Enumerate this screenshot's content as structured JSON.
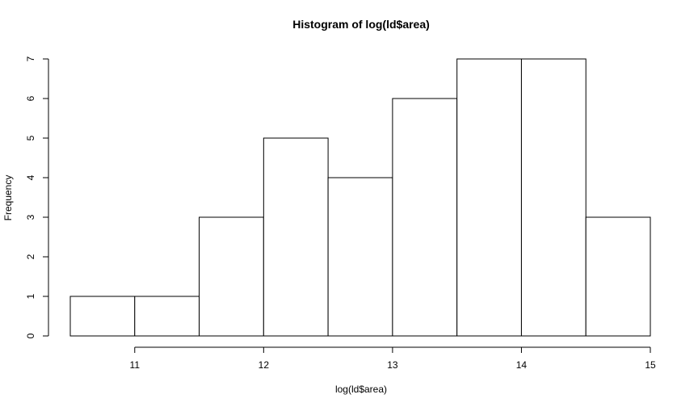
{
  "chart_data": {
    "type": "bar",
    "title": "Histogram of log(ld$area)",
    "xlabel": "log(ld$area)",
    "ylabel": "Frequency",
    "bins": [
      {
        "from": 10.5,
        "to": 11.0,
        "count": 1
      },
      {
        "from": 11.0,
        "to": 11.5,
        "count": 1
      },
      {
        "from": 11.5,
        "to": 12.0,
        "count": 3
      },
      {
        "from": 12.0,
        "to": 12.5,
        "count": 5
      },
      {
        "from": 12.5,
        "to": 13.0,
        "count": 4
      },
      {
        "from": 13.0,
        "to": 13.5,
        "count": 6
      },
      {
        "from": 13.5,
        "to": 14.0,
        "count": 7
      },
      {
        "from": 14.0,
        "to": 14.5,
        "count": 7
      },
      {
        "from": 14.5,
        "to": 15.0,
        "count": 3
      }
    ],
    "x_ticks": [
      11,
      12,
      13,
      14,
      15
    ],
    "y_ticks": [
      0,
      1,
      2,
      3,
      4,
      5,
      6,
      7
    ],
    "xlim": [
      10.5,
      15.0
    ],
    "ylim": [
      0,
      7
    ],
    "grid": false,
    "bar_fill": "#ffffff",
    "bar_stroke": "#000000"
  }
}
